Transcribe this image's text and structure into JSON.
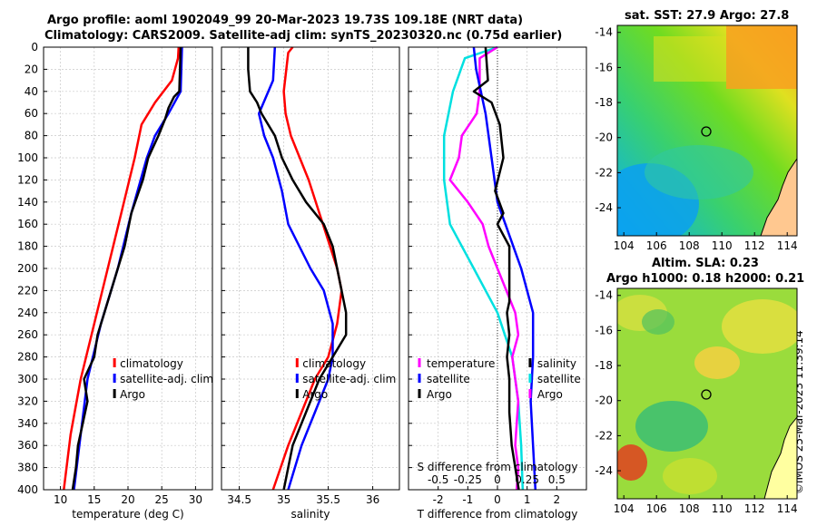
{
  "header": {
    "line1": "Argo profile: aoml 1902049_99 20-Mar-2023 19.73S 109.18E (NRT data)",
    "line2": "Climatology: CARS2009. Satellite-adj clim: synTS_20230320.nc (0.75d earlier)"
  },
  "map1": {
    "title": "sat. SST: 27.9 Argo: 27.8"
  },
  "map2": {
    "title1": "Altim. SLA: 0.23",
    "title2": "Argo h1000: 0.18 h2000: 0.21"
  },
  "map_axes": {
    "xticks": [
      "104",
      "106",
      "108",
      "110",
      "112",
      "114"
    ],
    "yticks": [
      "-14",
      "-16",
      "-18",
      "-20",
      "-22",
      "-24"
    ],
    "float_lon": 109.18,
    "float_lat": -19.73
  },
  "stamp": "©IMOS 25-Mar-2023 11:39:14",
  "colors": {
    "climatology": "#ff0000",
    "satellite": "#0000ff",
    "argo": "#000000",
    "t_diff": "#ff00ff",
    "s_diff": "#00e0e0"
  },
  "chart_data": [
    {
      "type": "line",
      "name": "temperature",
      "xlabel": "temperature (deg C)",
      "ylabel": "depth",
      "xlim": [
        7.5,
        32.5
      ],
      "ylim": [
        400,
        0
      ],
      "xticks": [
        10,
        15,
        20,
        25,
        30
      ],
      "yticks": [
        0,
        20,
        40,
        60,
        80,
        100,
        120,
        140,
        160,
        180,
        200,
        220,
        240,
        260,
        280,
        300,
        320,
        340,
        360,
        380,
        400
      ],
      "legend": [
        "climatology",
        "satellite-adj. clim",
        "Argo"
      ],
      "series": [
        {
          "name": "climatology",
          "depth": [
            0,
            10,
            30,
            50,
            70,
            100,
            150,
            200,
            250,
            300,
            350,
            400
          ],
          "values": [
            27.5,
            27.4,
            26.5,
            24.0,
            22.0,
            21.0,
            19.0,
            17.0,
            15.0,
            13.0,
            11.5,
            10.5
          ]
        },
        {
          "name": "satellite-adj. clim",
          "depth": [
            0,
            40,
            60,
            80,
            100,
            150,
            200,
            250,
            300,
            350,
            400
          ],
          "values": [
            28.0,
            27.8,
            26.0,
            24.0,
            22.8,
            20.5,
            18.5,
            16.0,
            14.0,
            13.0,
            12.0
          ]
        },
        {
          "name": "Argo",
          "depth": [
            0,
            40,
            45,
            55,
            65,
            80,
            100,
            120,
            150,
            180,
            200,
            220,
            240,
            260,
            280,
            300,
            320,
            340,
            360,
            380,
            400
          ],
          "values": [
            27.8,
            27.6,
            26.8,
            26.0,
            25.5,
            24.5,
            23.0,
            22.2,
            20.5,
            19.5,
            18.5,
            17.5,
            16.5,
            15.5,
            15.0,
            13.5,
            14.0,
            13.3,
            12.6,
            12.3,
            11.8
          ]
        }
      ]
    },
    {
      "type": "line",
      "name": "salinity",
      "xlabel": "salinity",
      "ylabel": "depth",
      "xlim": [
        34.3,
        36.3
      ],
      "ylim": [
        400,
        0
      ],
      "xticks": [
        34.5,
        35,
        35.5,
        36
      ],
      "xticklabels": [
        "34.5",
        "35",
        "35.5",
        "36"
      ],
      "legend": [
        "climatology",
        "satellite-adj. clim",
        "Argo"
      ],
      "series": [
        {
          "name": "climatology",
          "depth": [
            0,
            5,
            40,
            60,
            80,
            100,
            120,
            150,
            180,
            200,
            220,
            250,
            280,
            300,
            330,
            360,
            400
          ],
          "values": [
            35.1,
            35.05,
            35.0,
            35.02,
            35.08,
            35.18,
            35.28,
            35.4,
            35.52,
            35.6,
            35.65,
            35.6,
            35.5,
            35.35,
            35.2,
            35.05,
            34.88
          ]
        },
        {
          "name": "satellite-adj. clim",
          "depth": [
            0,
            30,
            60,
            80,
            100,
            130,
            160,
            200,
            220,
            250,
            280,
            300,
            330,
            360,
            400
          ],
          "values": [
            34.9,
            34.88,
            34.72,
            34.78,
            34.88,
            34.98,
            35.05,
            35.3,
            35.45,
            35.55,
            35.55,
            35.5,
            35.35,
            35.2,
            35.05
          ]
        },
        {
          "name": "Argo",
          "depth": [
            0,
            20,
            40,
            50,
            60,
            80,
            100,
            120,
            140,
            160,
            180,
            200,
            220,
            240,
            260,
            280,
            300,
            330,
            360,
            400
          ],
          "values": [
            34.6,
            34.6,
            34.62,
            34.7,
            34.75,
            34.9,
            34.98,
            35.1,
            35.25,
            35.45,
            35.55,
            35.6,
            35.65,
            35.7,
            35.7,
            35.55,
            35.4,
            35.25,
            35.1,
            35.0
          ]
        }
      ]
    },
    {
      "type": "line",
      "name": "difference",
      "xlabel": "T difference from climatology",
      "xlim": [
        -3,
        3
      ],
      "ylim": [
        400,
        0
      ],
      "xticks": [
        -2,
        -1,
        0,
        1,
        2
      ],
      "xticklabels": [
        "-2",
        "-1",
        "0",
        "1",
        "2"
      ],
      "top_axis_label": "S difference from climatology",
      "top_ticks": [
        -0.5,
        -0.25,
        0,
        0.25,
        0.5
      ],
      "top_ticklabels": [
        "-0.5",
        "-0.25",
        "0",
        "0.25",
        "0.5"
      ],
      "legend_left": [
        "temperature",
        "satellite",
        "Argo"
      ],
      "legend_right": [
        "salinity",
        "satellite",
        "Argo"
      ],
      "series": [
        {
          "name": "T satellite",
          "axis": "T",
          "depth": [
            0,
            10,
            40,
            80,
            120,
            160,
            200,
            240,
            280,
            320,
            360,
            400
          ],
          "values": [
            0.0,
            -1.1,
            -1.5,
            -1.8,
            -1.8,
            -1.6,
            -0.8,
            0.0,
            0.5,
            0.7,
            0.8,
            0.85
          ]
        },
        {
          "name": "T Argo",
          "axis": "T",
          "depth": [
            0,
            10,
            40,
            60,
            80,
            100,
            120,
            140,
            160,
            180,
            200,
            220,
            240,
            260,
            280,
            300,
            320,
            340,
            360,
            380,
            400
          ],
          "values": [
            0.0,
            -0.6,
            -0.6,
            -0.7,
            -1.2,
            -1.3,
            -1.6,
            -1.0,
            -0.5,
            -0.3,
            0.0,
            0.3,
            0.6,
            0.7,
            0.5,
            0.6,
            0.7,
            0.65,
            0.6,
            0.7,
            0.65
          ]
        },
        {
          "name": "S satellite",
          "axis": "S",
          "depth": [
            0,
            20,
            60,
            100,
            140,
            170,
            200,
            240,
            280,
            320,
            360,
            400
          ],
          "values": [
            -0.2,
            -0.18,
            -0.1,
            -0.05,
            0.0,
            0.1,
            0.2,
            0.3,
            0.3,
            0.28,
            0.3,
            0.32
          ]
        },
        {
          "name": "S Argo",
          "axis": "S",
          "depth": [
            0,
            30,
            40,
            50,
            70,
            100,
            130,
            150,
            160,
            170,
            180,
            200,
            230,
            240,
            260,
            280,
            300,
            330,
            360,
            400
          ],
          "values": [
            -0.1,
            -0.08,
            -0.2,
            -0.05,
            0.02,
            0.05,
            -0.02,
            0.05,
            0.0,
            0.05,
            0.1,
            0.1,
            0.1,
            0.08,
            0.1,
            0.08,
            0.1,
            0.1,
            0.12,
            0.18
          ]
        }
      ]
    }
  ]
}
